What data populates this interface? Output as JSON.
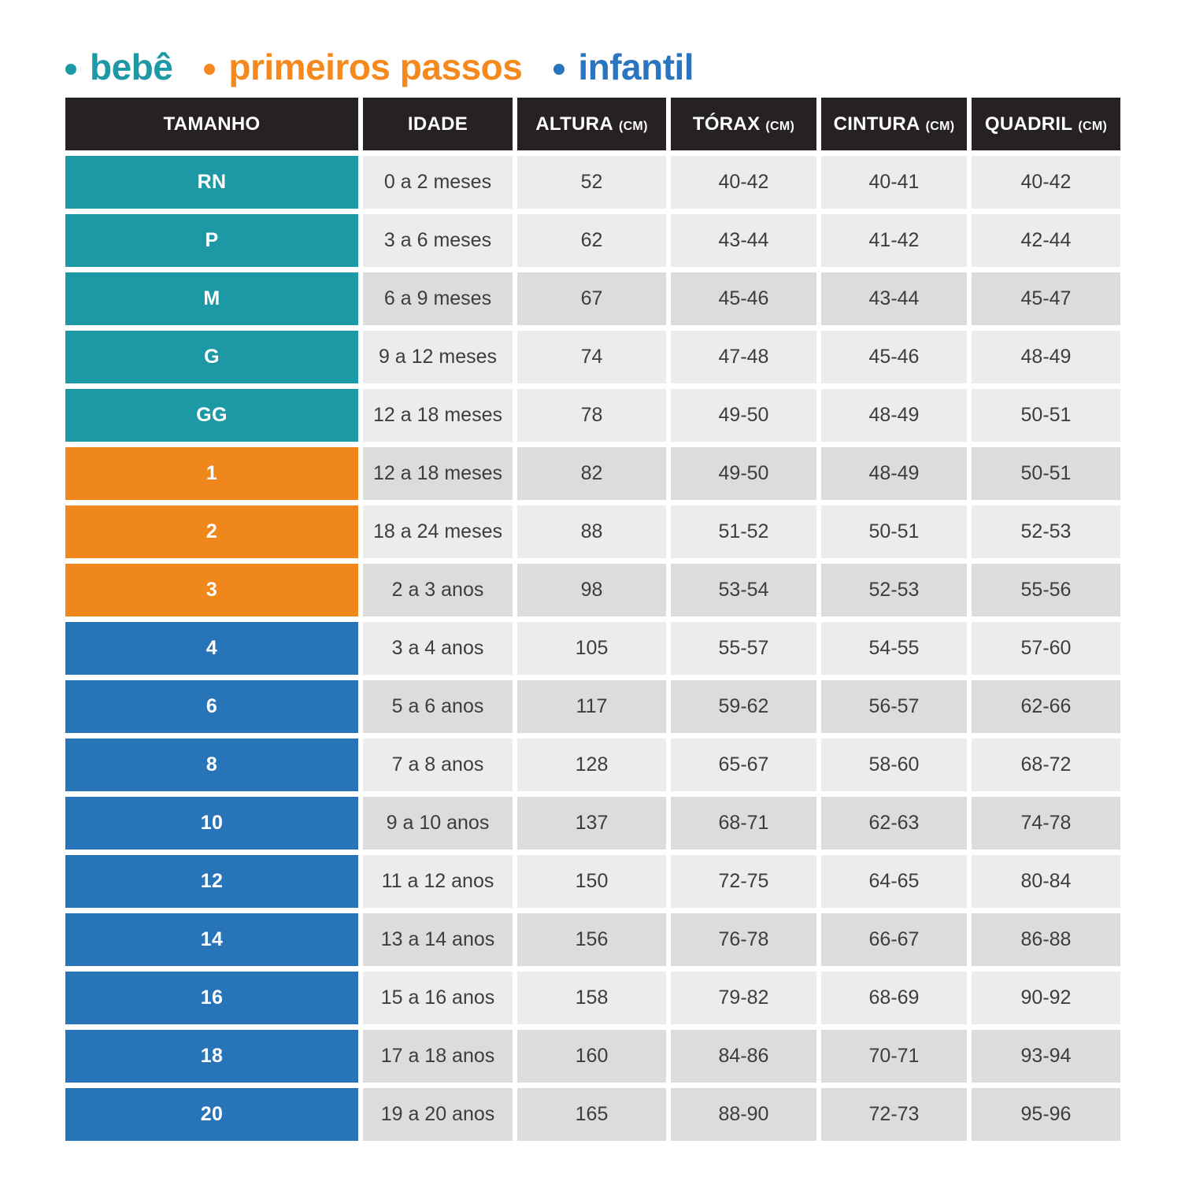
{
  "colors": {
    "header_bg": "#262223",
    "cell_light": "#ececec",
    "cell_dark": "#dcdcdc",
    "cell_text": "#3d3d3d",
    "group_bebe": "#1d99a5",
    "group_pp": "#f0871d",
    "group_infantil": "#2874b8",
    "legend_bebe": "#1d99a5",
    "legend_pp": "#f6891e",
    "legend_infantil": "#2a75bf"
  },
  "legend": {
    "items": [
      {
        "label": "bebê",
        "group": "bebe"
      },
      {
        "label": "primeiros passos",
        "group": "pp"
      },
      {
        "label": "infantil",
        "group": "infantil"
      }
    ]
  },
  "chart_data": {
    "type": "table",
    "columns": [
      {
        "label": "TAMANHO",
        "unit": ""
      },
      {
        "label": "IDADE",
        "unit": ""
      },
      {
        "label": "ALTURA",
        "unit": "(CM)"
      },
      {
        "label": "TÓRAX",
        "unit": "(CM)"
      },
      {
        "label": "CINTURA",
        "unit": "(CM)"
      },
      {
        "label": "QUADRIL",
        "unit": "(CM)"
      }
    ],
    "rows": [
      {
        "group": "bebe",
        "shade": "light",
        "cells": [
          "RN",
          "0 a 2 meses",
          "52",
          "40-42",
          "40-41",
          "40-42"
        ]
      },
      {
        "group": "bebe",
        "shade": "light",
        "cells": [
          "P",
          "3 a 6 meses",
          "62",
          "43-44",
          "41-42",
          "42-44"
        ]
      },
      {
        "group": "bebe",
        "shade": "dark",
        "cells": [
          "M",
          "6 a 9 meses",
          "67",
          "45-46",
          "43-44",
          "45-47"
        ]
      },
      {
        "group": "bebe",
        "shade": "light",
        "cells": [
          "G",
          "9 a 12 meses",
          "74",
          "47-48",
          "45-46",
          "48-49"
        ]
      },
      {
        "group": "bebe",
        "shade": "light",
        "cells": [
          "GG",
          "12 a 18 meses",
          "78",
          "49-50",
          "48-49",
          "50-51"
        ]
      },
      {
        "group": "pp",
        "shade": "dark",
        "cells": [
          "1",
          "12 a 18 meses",
          "82",
          "49-50",
          "48-49",
          "50-51"
        ]
      },
      {
        "group": "pp",
        "shade": "light",
        "cells": [
          "2",
          "18 a 24 meses",
          "88",
          "51-52",
          "50-51",
          "52-53"
        ]
      },
      {
        "group": "pp",
        "shade": "dark",
        "cells": [
          "3",
          "2 a 3 anos",
          "98",
          "53-54",
          "52-53",
          "55-56"
        ]
      },
      {
        "group": "infantil",
        "shade": "light",
        "cells": [
          "4",
          "3 a 4 anos",
          "105",
          "55-57",
          "54-55",
          "57-60"
        ]
      },
      {
        "group": "infantil",
        "shade": "dark",
        "cells": [
          "6",
          "5 a 6 anos",
          "117",
          "59-62",
          "56-57",
          "62-66"
        ]
      },
      {
        "group": "infantil",
        "shade": "light",
        "cells": [
          "8",
          "7 a 8 anos",
          "128",
          "65-67",
          "58-60",
          "68-72"
        ]
      },
      {
        "group": "infantil",
        "shade": "dark",
        "cells": [
          "10",
          "9 a 10 anos",
          "137",
          "68-71",
          "62-63",
          "74-78"
        ]
      },
      {
        "group": "infantil",
        "shade": "light",
        "cells": [
          "12",
          "11 a 12 anos",
          "150",
          "72-75",
          "64-65",
          "80-84"
        ]
      },
      {
        "group": "infantil",
        "shade": "dark",
        "cells": [
          "14",
          "13 a 14 anos",
          "156",
          "76-78",
          "66-67",
          "86-88"
        ]
      },
      {
        "group": "infantil",
        "shade": "light",
        "cells": [
          "16",
          "15 a 16 anos",
          "158",
          "79-82",
          "68-69",
          "90-92"
        ]
      },
      {
        "group": "infantil",
        "shade": "dark",
        "cells": [
          "18",
          "17 a 18 anos",
          "160",
          "84-86",
          "70-71",
          "93-94"
        ]
      },
      {
        "group": "infantil",
        "shade": "dark",
        "cells": [
          "20",
          "19 a 20 anos",
          "165",
          "88-90",
          "72-73",
          "95-96"
        ]
      }
    ]
  }
}
